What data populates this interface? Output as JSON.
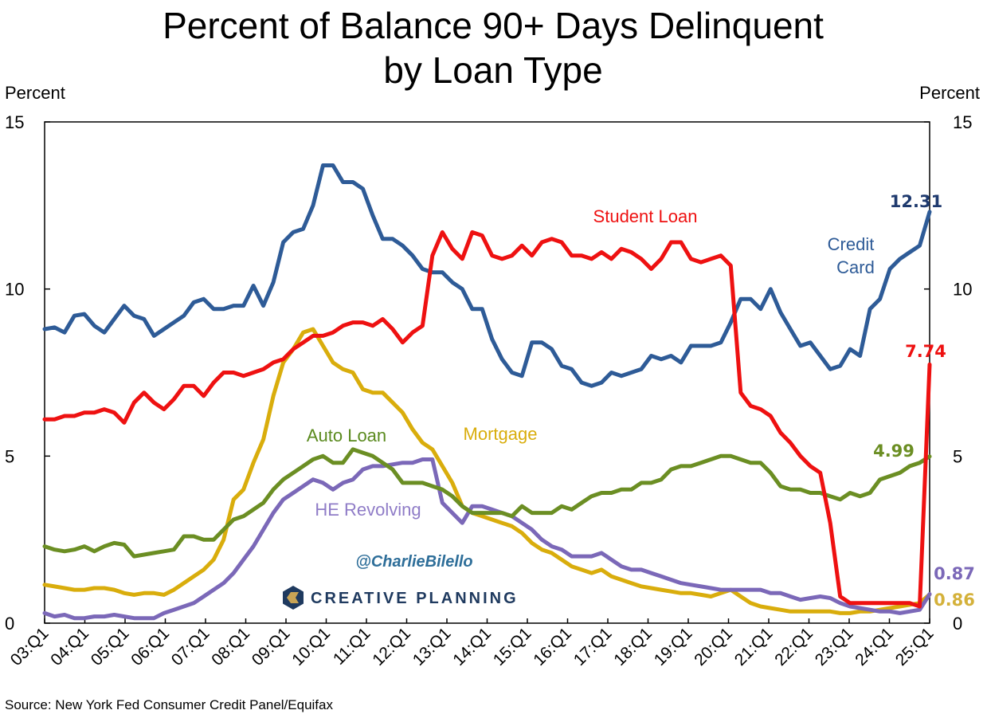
{
  "chart_data": {
    "type": "line",
    "title_line1": "Percent of Balance 90+ Days Delinquent",
    "title_line2": "by Loan Type",
    "ylabel_left": "Percent",
    "ylabel_right": "Percent",
    "ylim": [
      0,
      15
    ],
    "yticks": [
      "0",
      "5",
      "10",
      "15"
    ],
    "xticks": [
      "03:Q1",
      "04:Q1",
      "05:Q1",
      "06:Q1",
      "07:Q1",
      "08:Q1",
      "09:Q1",
      "10:Q1",
      "11:Q1",
      "12:Q1",
      "13:Q1",
      "14:Q1",
      "15:Q1",
      "16:Q1",
      "17:Q1",
      "18:Q1",
      "19:Q1",
      "20:Q1",
      "21:Q1",
      "22:Q1",
      "23:Q1",
      "24:Q1",
      "25:Q1"
    ],
    "x_start": "2003:Q1",
    "x_end": "2025:Q1",
    "grid": false,
    "source": "Source: New York Fed Consumer Credit Panel/Equifax",
    "watermark": "@CharlieBilello",
    "brand": "CREATIVE PLANNING",
    "series": [
      {
        "name": "Credit Card",
        "label_lines": [
          "Credit",
          "Card"
        ],
        "color": "#2e5b97",
        "end_label": "12.31",
        "end_color": "#1f3a6e",
        "values": [
          8.8,
          8.85,
          8.7,
          9.2,
          9.25,
          8.9,
          8.7,
          9.1,
          9.5,
          9.2,
          9.1,
          8.6,
          8.8,
          9.0,
          9.2,
          9.6,
          9.7,
          9.4,
          9.4,
          9.5,
          9.5,
          10.1,
          9.5,
          10.2,
          11.4,
          11.7,
          11.8,
          12.5,
          13.7,
          13.7,
          13.2,
          13.2,
          13.0,
          12.2,
          11.5,
          11.5,
          11.3,
          11.0,
          10.6,
          10.5,
          10.5,
          10.2,
          10.0,
          9.4,
          9.4,
          8.5,
          7.9,
          7.5,
          7.4,
          8.4,
          8.4,
          8.2,
          7.7,
          7.6,
          7.2,
          7.1,
          7.2,
          7.5,
          7.4,
          7.5,
          7.6,
          8.0,
          7.9,
          8.0,
          7.8,
          8.3,
          8.3,
          8.3,
          8.4,
          9.0,
          9.7,
          9.7,
          9.4,
          10.0,
          9.3,
          8.8,
          8.3,
          8.4,
          8.0,
          7.6,
          7.7,
          8.2,
          8.0,
          9.4,
          9.7,
          10.6,
          10.9,
          11.1,
          11.3,
          12.31
        ]
      },
      {
        "name": "Student Loan",
        "label_lines": [
          "Student Loan"
        ],
        "color": "#ee1111",
        "end_label": "7.74",
        "end_color": "#ee1111",
        "values": [
          6.1,
          6.1,
          6.2,
          6.2,
          6.3,
          6.3,
          6.4,
          6.3,
          6.0,
          6.6,
          6.9,
          6.6,
          6.4,
          6.7,
          7.1,
          7.1,
          6.8,
          7.2,
          7.5,
          7.5,
          7.4,
          7.5,
          7.6,
          7.8,
          7.9,
          8.2,
          8.4,
          8.6,
          8.6,
          8.7,
          8.9,
          9.0,
          9.0,
          8.9,
          9.1,
          8.8,
          8.4,
          8.7,
          8.9,
          11.0,
          11.7,
          11.2,
          10.9,
          11.7,
          11.6,
          11.0,
          10.9,
          11.0,
          11.3,
          11.0,
          11.4,
          11.5,
          11.4,
          11.0,
          11.0,
          10.9,
          11.1,
          10.9,
          11.2,
          11.1,
          10.9,
          10.6,
          10.9,
          11.4,
          11.4,
          10.9,
          10.8,
          10.9,
          11.0,
          10.7,
          6.9,
          6.5,
          6.4,
          6.2,
          5.7,
          5.4,
          5.0,
          4.7,
          4.5,
          3.0,
          0.8,
          0.6,
          0.6,
          0.6,
          0.6,
          0.6,
          0.6,
          0.6,
          0.5,
          7.74
        ]
      },
      {
        "name": "Auto Loan",
        "label_lines": [
          "Auto Loan"
        ],
        "color": "#6b8e23",
        "label_color": "#5a8a1e",
        "end_label": "4.99",
        "end_color": "#6b8e23",
        "values": [
          2.3,
          2.2,
          2.15,
          2.2,
          2.3,
          2.15,
          2.3,
          2.4,
          2.35,
          2.0,
          2.05,
          2.1,
          2.15,
          2.2,
          2.6,
          2.6,
          2.5,
          2.5,
          2.8,
          3.1,
          3.2,
          3.4,
          3.6,
          4.0,
          4.3,
          4.5,
          4.7,
          4.9,
          5.0,
          4.8,
          4.8,
          5.2,
          5.1,
          5.0,
          4.8,
          4.6,
          4.2,
          4.2,
          4.2,
          4.1,
          4.0,
          3.8,
          3.5,
          3.3,
          3.3,
          3.3,
          3.3,
          3.2,
          3.5,
          3.3,
          3.3,
          3.3,
          3.5,
          3.4,
          3.6,
          3.8,
          3.9,
          3.9,
          4.0,
          4.0,
          4.2,
          4.2,
          4.3,
          4.6,
          4.7,
          4.7,
          4.8,
          4.9,
          5.0,
          5.0,
          4.9,
          4.8,
          4.8,
          4.5,
          4.1,
          4.0,
          4.0,
          3.9,
          3.9,
          3.8,
          3.7,
          3.9,
          3.8,
          3.9,
          4.3,
          4.4,
          4.5,
          4.7,
          4.8,
          4.99
        ]
      },
      {
        "name": "Mortgage",
        "label_lines": [
          "Mortgage"
        ],
        "color": "#d9ad0c",
        "end_label": "0.86",
        "end_color": "#d4b13a",
        "values": [
          1.15,
          1.1,
          1.05,
          1.0,
          1.0,
          1.05,
          1.05,
          1.0,
          0.9,
          0.85,
          0.9,
          0.9,
          0.85,
          1.0,
          1.2,
          1.4,
          1.6,
          1.9,
          2.5,
          3.7,
          4.0,
          4.8,
          5.5,
          6.8,
          7.8,
          8.2,
          8.7,
          8.8,
          8.3,
          7.8,
          7.6,
          7.5,
          7.0,
          6.9,
          6.9,
          6.6,
          6.3,
          5.8,
          5.4,
          5.2,
          4.7,
          4.2,
          3.5,
          3.3,
          3.2,
          3.1,
          3.0,
          2.9,
          2.7,
          2.4,
          2.2,
          2.1,
          1.9,
          1.7,
          1.6,
          1.5,
          1.6,
          1.4,
          1.3,
          1.2,
          1.1,
          1.05,
          1.0,
          0.95,
          0.9,
          0.9,
          0.85,
          0.8,
          0.9,
          1.0,
          0.8,
          0.6,
          0.5,
          0.45,
          0.4,
          0.35,
          0.35,
          0.35,
          0.35,
          0.35,
          0.3,
          0.3,
          0.35,
          0.35,
          0.4,
          0.45,
          0.5,
          0.55,
          0.6,
          0.86
        ]
      },
      {
        "name": "HE Revolving",
        "label_lines": [
          "HE Revolving"
        ],
        "color": "#7b68b8",
        "label_color": "#8f7cc7",
        "end_label": "0.87",
        "end_color": "#7b68b8",
        "values": [
          0.3,
          0.2,
          0.25,
          0.15,
          0.15,
          0.2,
          0.2,
          0.25,
          0.2,
          0.15,
          0.15,
          0.15,
          0.3,
          0.4,
          0.5,
          0.6,
          0.8,
          1.0,
          1.2,
          1.5,
          1.9,
          2.3,
          2.8,
          3.3,
          3.7,
          3.9,
          4.1,
          4.3,
          4.2,
          4.0,
          4.2,
          4.3,
          4.6,
          4.7,
          4.7,
          4.75,
          4.8,
          4.8,
          4.9,
          4.9,
          3.6,
          3.3,
          3.0,
          3.5,
          3.5,
          3.4,
          3.3,
          3.2,
          3.0,
          2.8,
          2.5,
          2.3,
          2.2,
          2.0,
          2.0,
          2.0,
          2.1,
          1.9,
          1.7,
          1.6,
          1.6,
          1.5,
          1.4,
          1.3,
          1.2,
          1.15,
          1.1,
          1.05,
          1.0,
          1.0,
          1.0,
          1.0,
          1.0,
          0.9,
          0.9,
          0.8,
          0.7,
          0.75,
          0.8,
          0.75,
          0.6,
          0.5,
          0.45,
          0.4,
          0.35,
          0.35,
          0.3,
          0.35,
          0.4,
          0.87
        ]
      }
    ]
  }
}
